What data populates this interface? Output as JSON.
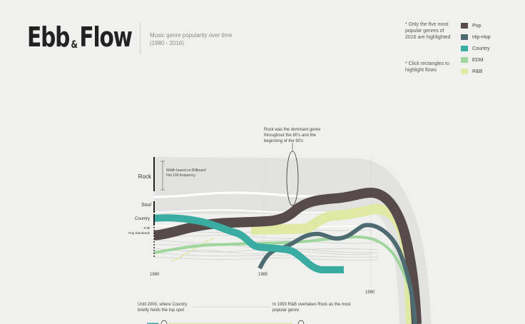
{
  "header": {
    "title_part1": "Ebb",
    "title_amp": "&",
    "title_part2": "Flow",
    "subtitle": "Music genre popularity over time (1980 - 2016)"
  },
  "notes": {
    "highlight_note": "* Only the five most popular genres of 2016 are highlighted",
    "click_note": "* Click rectangles to highlight flows"
  },
  "legend": [
    {
      "label": "Pop",
      "color": "#564a4a"
    },
    {
      "label": "Hip-Hop",
      "color": "#4e6b72"
    },
    {
      "label": "Country",
      "color": "#3aaca2"
    },
    {
      "label": "EDM",
      "color": "#9ed69c"
    },
    {
      "label": "R&B",
      "color": "#e0e9a3"
    }
  ],
  "genre_labels": {
    "rock": "Rock",
    "soul": "Soul",
    "country": "Country",
    "folk": "Folk",
    "pop_standards": "Pop Standards"
  },
  "width_note": "Width based on Billboard Hot 100 frequency",
  "annotations": {
    "rock_dominant": "Rock was the dominant genre throughout the 80's and the beginning of the 90's",
    "country_top": "Until 2000, where Country briefly holds the top spot",
    "rnb_overtakes": "In 1993 R&B overtakes Rock as the most popular genre"
  },
  "axis": {
    "y1980": "1980",
    "y1985": "1985",
    "y1990": "1990"
  }
}
